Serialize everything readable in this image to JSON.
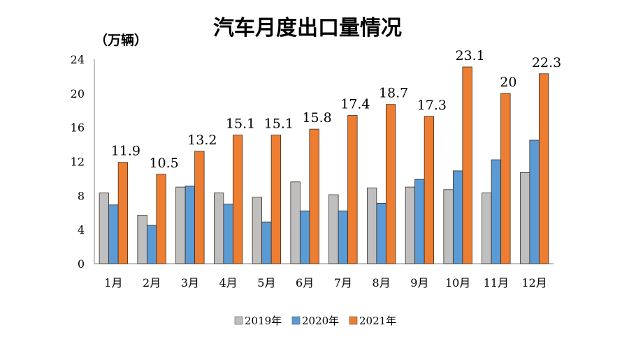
{
  "chart_data": {
    "type": "bar",
    "title": "汽车月度出口量情况",
    "unit_label": "（万辆）",
    "categories": [
      "1月",
      "2月",
      "3月",
      "4月",
      "5月",
      "6月",
      "7月",
      "8月",
      "9月",
      "10月",
      "11月",
      "12月"
    ],
    "series": [
      {
        "name": "2019年",
        "color": "#bfbfbf",
        "values": [
          8.3,
          5.7,
          9.0,
          8.3,
          7.8,
          9.6,
          8.1,
          8.9,
          9.0,
          8.7,
          8.3,
          10.7
        ]
      },
      {
        "name": "2020年",
        "color": "#5b9bd5",
        "values": [
          6.9,
          4.5,
          9.1,
          7.0,
          4.9,
          6.2,
          6.2,
          7.1,
          9.9,
          10.9,
          12.2,
          14.5
        ]
      },
      {
        "name": "2021年",
        "color": "#ed7d31",
        "values": [
          11.9,
          10.5,
          13.2,
          15.1,
          15.1,
          15.8,
          17.4,
          18.7,
          17.3,
          23.1,
          20,
          22.3
        ],
        "labels": [
          "11.9",
          "10.5",
          "13.2",
          "15.1",
          "15.1",
          "15.8",
          "17.4",
          "18.7",
          "17.3",
          "23.1",
          "20",
          "22.3"
        ]
      }
    ],
    "yticks": [
      0,
      4,
      8,
      12,
      16,
      20,
      24
    ],
    "ylim": [
      0,
      24
    ],
    "grid": false,
    "legend": "bottom"
  }
}
